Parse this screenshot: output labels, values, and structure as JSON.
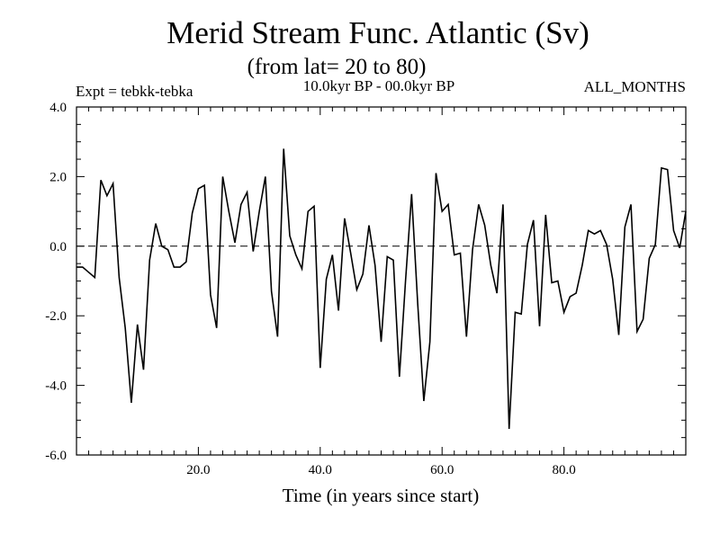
{
  "chart_data": {
    "type": "line",
    "title": "Merid Stream Func. Atlantic (Sv)",
    "subtitle": "(from lat= 20 to 80)",
    "experiment": "Expt = tebkk-tebka",
    "period": "10.0kyr BP - 00.0kyr BP",
    "months": "ALL_MONTHS",
    "xlabel": "Time (in years since start)",
    "ylabel": "",
    "xlim": [
      0,
      100
    ],
    "ylim": [
      -6,
      4
    ],
    "xticks": [
      20,
      40,
      60,
      80
    ],
    "xtick_labels": [
      "20.0",
      "40.0",
      "60.0",
      "80.0"
    ],
    "yticks": [
      4,
      2,
      0,
      -2,
      -4,
      -6
    ],
    "ytick_labels": [
      "4.0",
      "2.0",
      "0.0",
      "-2.0",
      "-4.0",
      "-6.0"
    ],
    "reference_line": {
      "y": 0,
      "style": "dashed"
    },
    "grid": false,
    "series": [
      {
        "name": "Merid Stream Func. Atlantic",
        "x": [
          1,
          2,
          3,
          4,
          5,
          6,
          7,
          8,
          9,
          10,
          11,
          12,
          13,
          14,
          15,
          16,
          17,
          18,
          19,
          20,
          21,
          22,
          23,
          24,
          25,
          26,
          27,
          28,
          29,
          30,
          31,
          32,
          33,
          34,
          35,
          36,
          37,
          38,
          39,
          40,
          41,
          42,
          43,
          44,
          45,
          46,
          47,
          48,
          49,
          50,
          51,
          52,
          53,
          54,
          55,
          56,
          57,
          58,
          59,
          60,
          61,
          62,
          63,
          64,
          65,
          66,
          67,
          68,
          69,
          70,
          71,
          72,
          73,
          74,
          75,
          76,
          77,
          78,
          79,
          80,
          81,
          82,
          83,
          84,
          85,
          86,
          87,
          88,
          89,
          90,
          91,
          92,
          93,
          94,
          95,
          96,
          97,
          98,
          99,
          100
        ],
        "values": [
          -0.6,
          -0.75,
          -0.9,
          1.9,
          1.45,
          1.8,
          -0.9,
          -2.35,
          -4.5,
          -2.25,
          -3.55,
          -0.4,
          0.65,
          0.0,
          -0.1,
          -0.6,
          -0.6,
          -0.45,
          0.95,
          1.65,
          1.75,
          -1.4,
          -2.35,
          2.0,
          1.0,
          0.1,
          1.2,
          1.55,
          -0.15,
          1.0,
          2.0,
          -1.3,
          -2.6,
          2.8,
          0.3,
          -0.25,
          -0.65,
          1.0,
          1.15,
          -3.5,
          -0.95,
          -0.25,
          -1.85,
          0.8,
          -0.2,
          -1.25,
          -0.8,
          0.6,
          -0.55,
          -2.75,
          -0.3,
          -0.4,
          -3.75,
          -1.0,
          1.5,
          -1.65,
          -4.45,
          -2.75,
          2.1,
          1.0,
          1.2,
          -0.25,
          -0.2,
          -2.6,
          -0.1,
          1.2,
          0.6,
          -0.55,
          -1.35,
          1.2,
          -5.25,
          -1.9,
          -1.95,
          0.05,
          0.75,
          -2.3,
          0.9,
          -1.05,
          -1.0,
          -1.9,
          -1.45,
          -1.35,
          -0.55,
          0.45,
          0.35,
          0.45,
          0.05,
          -0.95,
          -2.55,
          0.55,
          1.2,
          -2.45,
          -2.1,
          -0.35,
          0.05,
          2.25,
          2.2,
          0.45,
          -0.05,
          1.0
        ]
      }
    ]
  }
}
